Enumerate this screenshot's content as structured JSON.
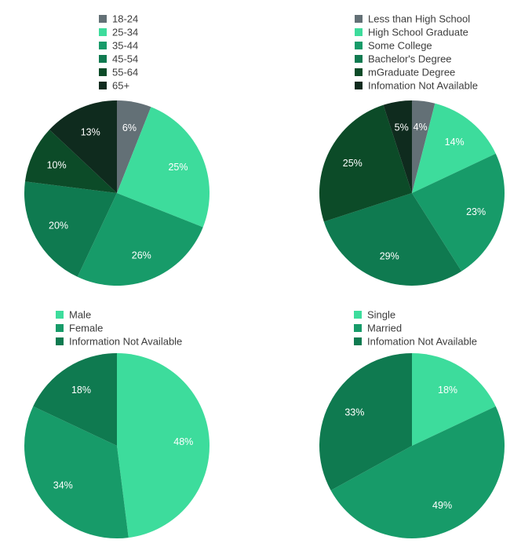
{
  "chart_data": [
    {
      "type": "pie",
      "categories": [
        "18-24",
        "25-34",
        "35-44",
        "45-54",
        "55-64",
        "65+"
      ],
      "values": [
        6,
        25,
        26,
        20,
        10,
        13
      ],
      "labels": [
        "6%",
        "25%",
        "26%",
        "20%",
        "10%",
        "13%"
      ],
      "colors": [
        "#637076",
        "#3ddc9c",
        "#179b69",
        "#0f7a50",
        "#0c4b28",
        "#0f2b1e"
      ],
      "legend": "top"
    },
    {
      "type": "pie",
      "categories": [
        "Less than High School",
        "High School Graduate",
        "Some College",
        "Bachelor's Degree",
        "mGraduate Degree",
        "Infomation Not Available"
      ],
      "values": [
        4,
        14,
        23,
        29,
        25,
        5
      ],
      "labels": [
        "4%",
        "14%",
        "23%",
        "29%",
        "25%",
        "5%"
      ],
      "colors": [
        "#637076",
        "#3ddc9c",
        "#179b69",
        "#0f7a50",
        "#0c4b28",
        "#0f2b1e"
      ],
      "legend": "top"
    },
    {
      "type": "pie",
      "categories": [
        "Male",
        "Female",
        "Information Not Available"
      ],
      "values": [
        48,
        34,
        18
      ],
      "labels": [
        "48%",
        "34%",
        "18%"
      ],
      "colors": [
        "#3ddc9c",
        "#179b69",
        "#0f7a50"
      ],
      "legend": "top"
    },
    {
      "type": "pie",
      "categories": [
        "Single",
        "Married",
        "Infomation Not Available"
      ],
      "values": [
        18,
        49,
        33
      ],
      "labels": [
        "18%",
        "49%",
        "33%"
      ],
      "colors": [
        "#3ddc9c",
        "#179b69",
        "#0f7a50"
      ],
      "legend": "top"
    }
  ]
}
